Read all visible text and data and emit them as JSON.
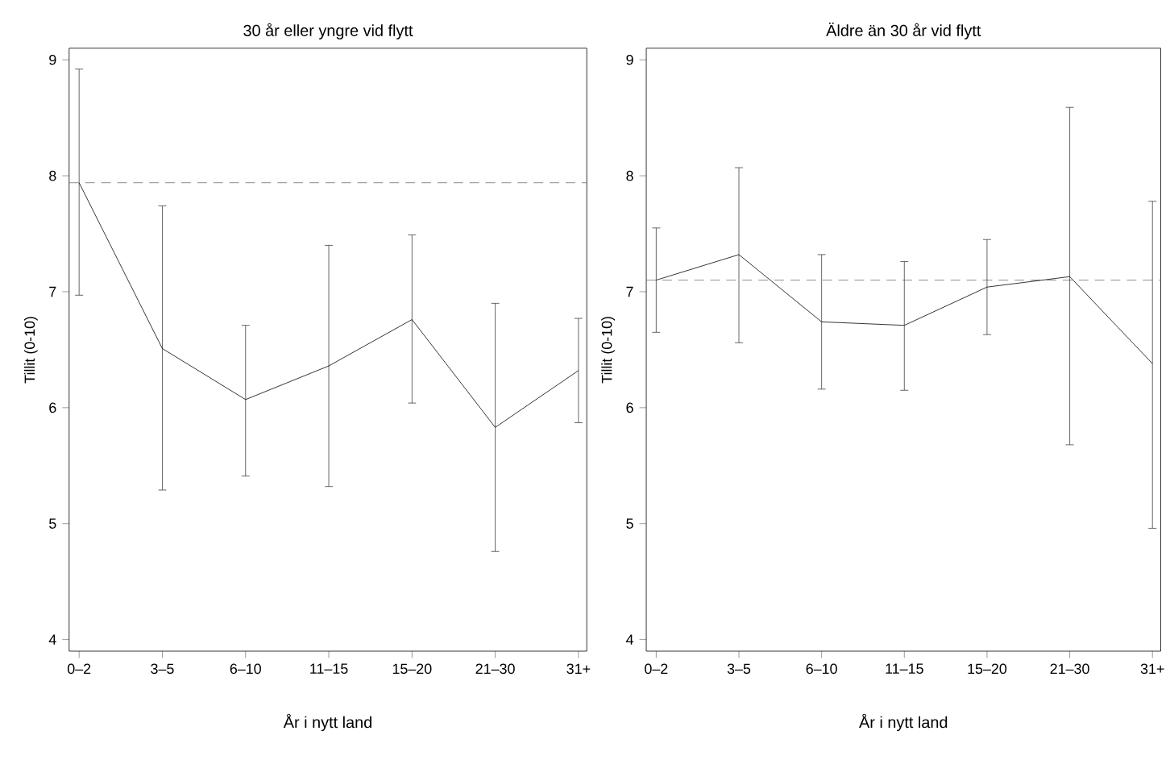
{
  "chart_data": [
    {
      "type": "line",
      "title": "30 år eller yngre vid flytt",
      "xlabel": "År i nytt land",
      "ylabel": "Tillit (0-10)",
      "categories": [
        "0–2",
        "3–5",
        "6–10",
        "11–15",
        "15–20",
        "21–30",
        "31+"
      ],
      "values": [
        7.94,
        6.51,
        6.07,
        6.36,
        6.76,
        5.83,
        6.32
      ],
      "errors": [
        [
          6.97,
          8.92
        ],
        [
          5.29,
          7.74
        ],
        [
          5.41,
          6.71
        ],
        [
          5.32,
          7.4
        ],
        [
          6.04,
          7.49
        ],
        [
          4.76,
          6.9
        ],
        [
          5.87,
          6.77
        ]
      ],
      "color": "#000000",
      "ylim": [
        3.9,
        9.1
      ],
      "yticks": [
        4,
        5,
        6,
        7,
        8,
        9
      ],
      "ref_lines": [
        {
          "axis": "y",
          "value": 7.94,
          "line_style": "dashed",
          "color": "#6e6e6e"
        }
      ]
    },
    {
      "type": "line",
      "title": "Äldre än 30 år vid flytt",
      "xlabel": "År i nytt land",
      "ylabel": "Tillit (0-10)",
      "categories": [
        "0–2",
        "3–5",
        "6–10",
        "11–15",
        "15–20",
        "21–30",
        "31+"
      ],
      "values": [
        7.1,
        7.32,
        6.74,
        6.71,
        7.04,
        7.13,
        6.38
      ],
      "errors": [
        [
          6.65,
          7.55
        ],
        [
          6.56,
          8.07
        ],
        [
          6.16,
          7.32
        ],
        [
          6.15,
          7.26
        ],
        [
          6.63,
          7.45
        ],
        [
          5.68,
          8.59
        ],
        [
          4.96,
          7.78
        ]
      ],
      "color": "#000000",
      "ylim": [
        3.9,
        9.1
      ],
      "yticks": [
        4,
        5,
        6,
        7,
        8,
        9
      ],
      "ref_lines": [
        {
          "axis": "y",
          "value": 7.1,
          "line_style": "dashed",
          "color": "#6e6e6e"
        }
      ]
    }
  ]
}
